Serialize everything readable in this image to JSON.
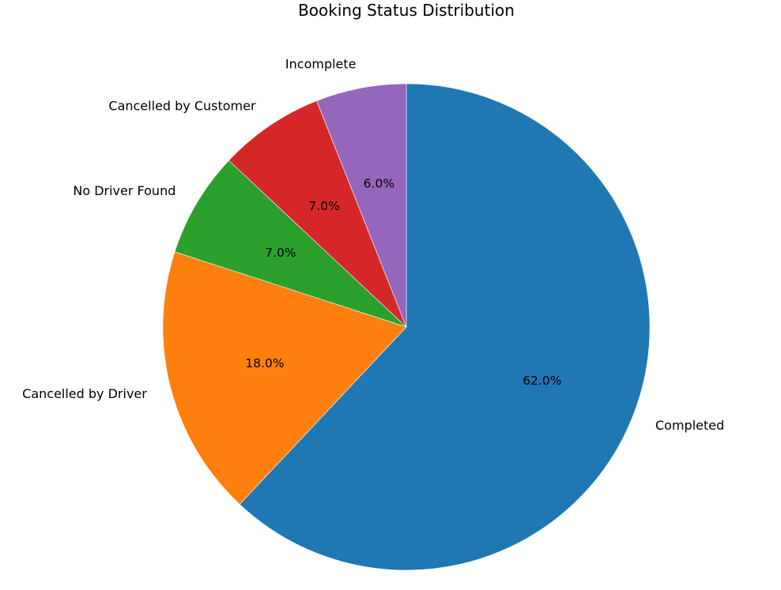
{
  "chart_data": {
    "type": "pie",
    "title": "Booking Status Distribution",
    "start_angle_deg": 90,
    "direction": "clockwise",
    "slices": [
      {
        "label": "Completed",
        "value": 62.0,
        "pct_label": "62.0%",
        "color": "#1f77b4"
      },
      {
        "label": "Cancelled by Driver",
        "value": 18.0,
        "pct_label": "18.0%",
        "color": "#ff7f0e"
      },
      {
        "label": "No Driver Found",
        "value": 7.0,
        "pct_label": "7.0%",
        "color": "#2ca02c"
      },
      {
        "label": "Cancelled by Customer",
        "value": 7.0,
        "pct_label": "7.0%",
        "color": "#d62728"
      },
      {
        "label": "Incomplete",
        "value": 6.0,
        "pct_label": "6.0%",
        "color": "#9467bd"
      }
    ]
  }
}
